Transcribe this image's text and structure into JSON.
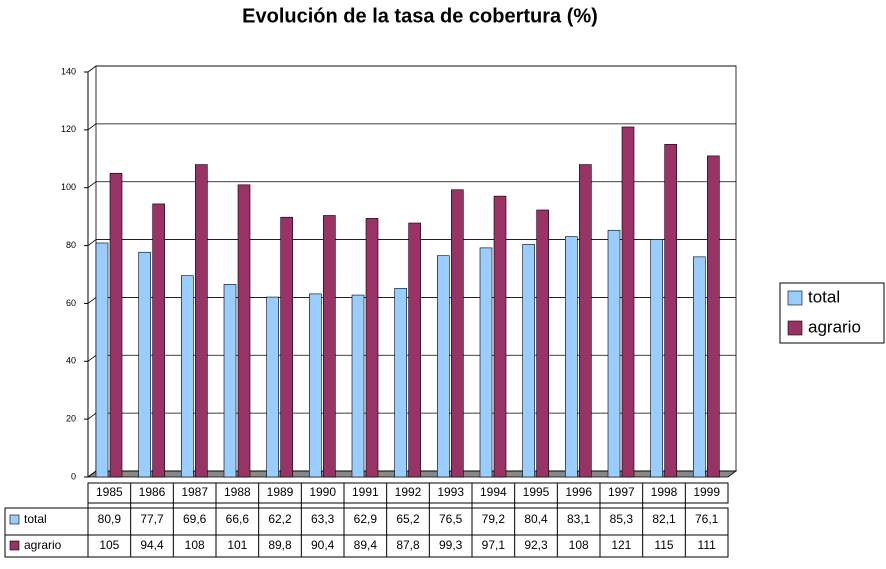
{
  "chart_data": {
    "type": "bar",
    "title": "Evolución de la tasa de cobertura (%)",
    "categories": [
      "1985",
      "1986",
      "1987",
      "1988",
      "1989",
      "1990",
      "1991",
      "1992",
      "1993",
      "1994",
      "1995",
      "1996",
      "1997",
      "1998",
      "1999"
    ],
    "series": [
      {
        "name": "total",
        "color": "#99ccff",
        "values": [
          80.9,
          77.7,
          69.6,
          66.6,
          62.2,
          63.3,
          62.9,
          65.2,
          76.5,
          79.2,
          80.4,
          83.1,
          85.3,
          82.1,
          76.1
        ],
        "value_labels": [
          "80,9",
          "77,7",
          "69,6",
          "66,6",
          "62,2",
          "63,3",
          "62,9",
          "65,2",
          "76,5",
          "79,2",
          "80,4",
          "83,1",
          "85,3",
          "82,1",
          "76,1"
        ]
      },
      {
        "name": "agrario",
        "color": "#993366",
        "values": [
          105,
          94.4,
          108,
          101,
          89.8,
          90.4,
          89.4,
          87.8,
          99.3,
          97.1,
          92.3,
          108,
          121,
          115,
          111
        ],
        "value_labels": [
          "105",
          "94,4",
          "108",
          "101",
          "89,8",
          "90,4",
          "89,4",
          "87,8",
          "99,3",
          "97,1",
          "92,3",
          "108",
          "121",
          "115",
          "111"
        ]
      }
    ],
    "ylim": [
      0,
      140
    ],
    "yticks": [
      0,
      20,
      40,
      60,
      80,
      100,
      120,
      140
    ],
    "grid": true,
    "legend": "right"
  }
}
